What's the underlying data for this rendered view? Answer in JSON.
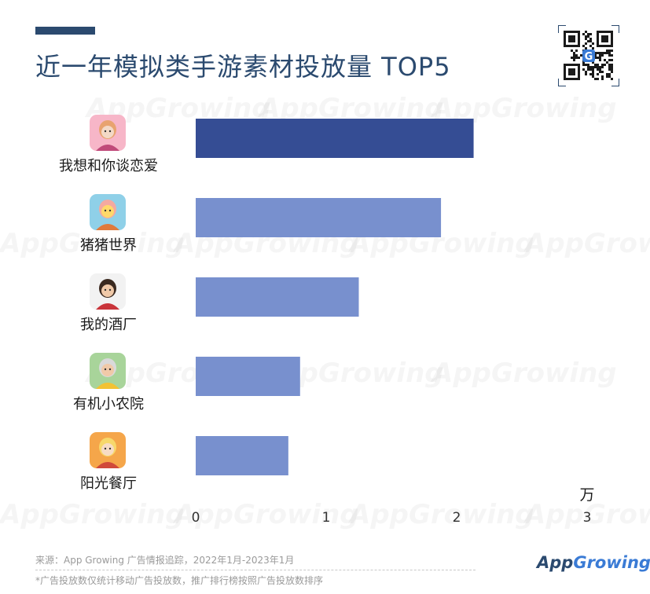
{
  "header": {
    "title": "近一年模拟类手游素材投放量 TOP5"
  },
  "chart_data": {
    "type": "bar",
    "orientation": "horizontal",
    "title": "近一年模拟类手游素材投放量 TOP5",
    "categories": [
      "我想和你谈恋爱",
      "猪猪世界",
      "我的酒厂",
      "有机小农院",
      "阳光餐厅"
    ],
    "values": [
      2.13,
      1.88,
      1.25,
      0.8,
      0.71
    ],
    "x_ticks": [
      "0",
      "1",
      "2",
      "3"
    ],
    "x_unit": "万",
    "xlim": [
      0,
      3
    ],
    "grid": false,
    "legend": "none",
    "colors": {
      "top_bar": "#354d94",
      "other_bars": "#7890ce"
    }
  },
  "icons": [
    "game-icon-romance",
    "game-icon-pig-world",
    "game-icon-winery",
    "game-icon-farm",
    "game-icon-restaurant"
  ],
  "footer": {
    "source": "来源：App Growing 广告情报追踪，2022年1月-2023年1月",
    "note": "*广告投放数仅统计移动广告投放数，推广排行榜按照广告投放数排序",
    "logo_app": "App",
    "logo_growing": "Growing"
  },
  "watermark_text": "AppGrowing"
}
